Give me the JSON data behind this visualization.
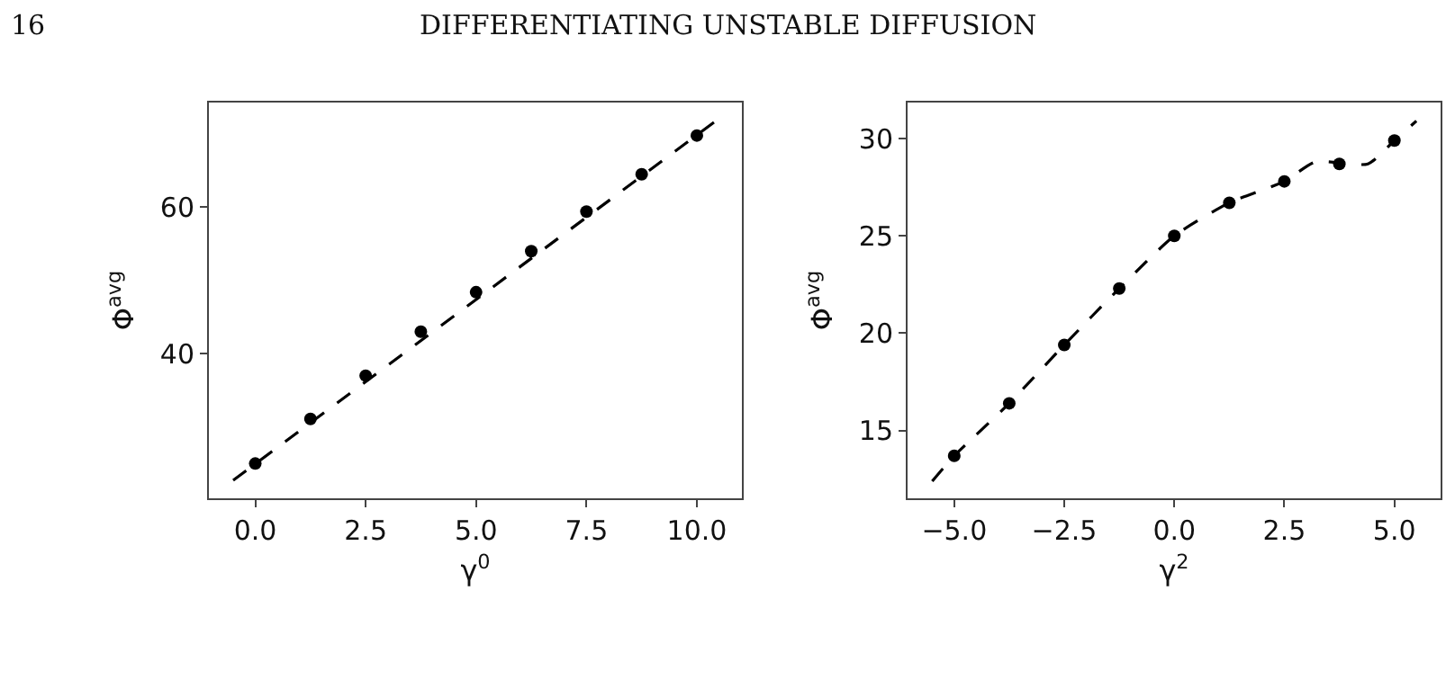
{
  "chart_data": [
    {
      "type": "scatter",
      "xlabel": "γ$^{0}$",
      "ylabel": "Φ$^{avg}$",
      "annotations": [
        "16",
        "DIFFERENTIATING UNSTABLE DIFFUSION"
      ],
      "x": [
        0,
        1.25,
        2.5,
        3.75,
        5,
        6.25,
        7.5,
        8.75,
        10
      ],
      "series": [
        {
          "type": "line",
          "color": "#000000",
          "line_style": "dashed",
          "marker": "none",
          "x": [
            -0.5,
            10.5
          ],
          "values": [
            22.7,
            72.1
          ]
        },
        {
          "color": "#000000",
          "marker": "circle",
          "values": [
            25.0,
            31.1,
            37.0,
            43.0,
            48.4,
            54.0,
            59.4,
            64.5,
            69.8
          ]
        }
      ],
      "xlim": [
        -1.05,
        11.02
      ],
      "ylim": [
        20.25,
        74.3
      ],
      "xticks": [
        {
          "value": 0,
          "label": "0.0"
        },
        {
          "value": 2.5,
          "label": "2.5"
        },
        {
          "value": 5,
          "label": "5.0"
        },
        {
          "value": 7.5,
          "label": "7.5"
        },
        {
          "value": 10,
          "label": "10.0"
        }
      ],
      "yticks": [
        40,
        60
      ]
    },
    {
      "type": "scatter",
      "xlabel": "γ$^{2}$",
      "ylabel": "Φ$^{avg}$",
      "x": [
        -5,
        -3.75,
        -2.5,
        -1.25,
        0,
        1.25,
        2.5,
        3.75,
        5
      ],
      "series": [
        {
          "type": "line",
          "color": "#000000",
          "line_style": "dashed",
          "marker": "none",
          "x": [
            -5.5,
            -5,
            -3.75,
            -2.5,
            -1.25,
            0,
            1.25,
            2.5,
            3.2,
            4.4,
            5,
            5.5
          ],
          "values": [
            12.4,
            13.7,
            16.4,
            19.4,
            22.3,
            25.0,
            26.7,
            27.8,
            28.8,
            28.7,
            29.9,
            30.9
          ]
        },
        {
          "color": "#000000",
          "marker": "circle",
          "values": [
            13.7,
            16.4,
            19.4,
            22.3,
            25.0,
            26.7,
            27.8,
            28.7,
            29.9
          ]
        }
      ],
      "xlim": [
        -6.06,
        6.05
      ],
      "ylim": [
        11.52,
        31.85
      ],
      "xticks": [
        {
          "value": -5,
          "label": "−5.0"
        },
        {
          "value": -2.5,
          "label": "−2.5"
        },
        {
          "value": 0,
          "label": "0.0"
        },
        {
          "value": 2.5,
          "label": "2.5"
        },
        {
          "value": 5,
          "label": "5.0"
        }
      ],
      "yticks": [
        15,
        20,
        25,
        30
      ]
    }
  ]
}
